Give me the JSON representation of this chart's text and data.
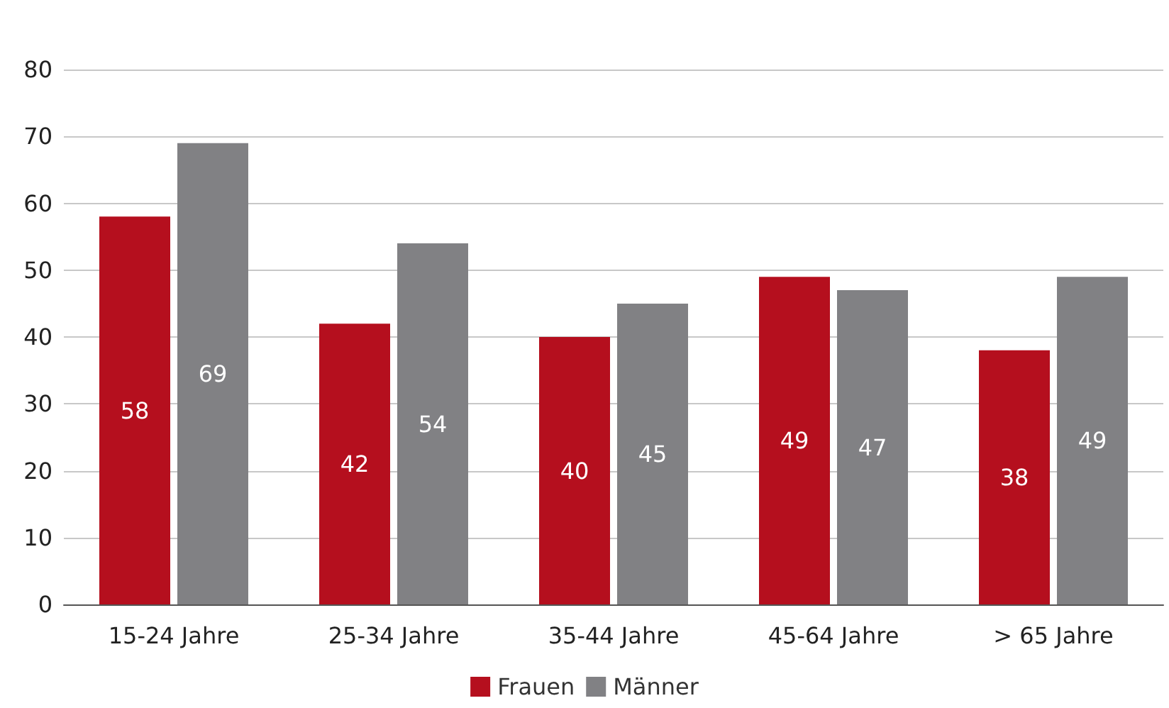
{
  "chart_data": {
    "type": "bar",
    "categories": [
      "15-24 Jahre",
      "25-34 Jahre",
      "35-44 Jahre",
      "45-64 Jahre",
      "> 65 Jahre"
    ],
    "series": [
      {
        "name": "Frauen",
        "color": "#b50f1e",
        "values": [
          58,
          42,
          40,
          49,
          38
        ]
      },
      {
        "name": "Männer",
        "color": "#818184",
        "values": [
          69,
          54,
          45,
          47,
          49
        ]
      }
    ],
    "ylim": [
      0,
      80
    ],
    "yticks": [
      0,
      10,
      20,
      30,
      40,
      50,
      60,
      70,
      80
    ],
    "grid": "y",
    "legend": "bottom",
    "data_labels": true
  }
}
